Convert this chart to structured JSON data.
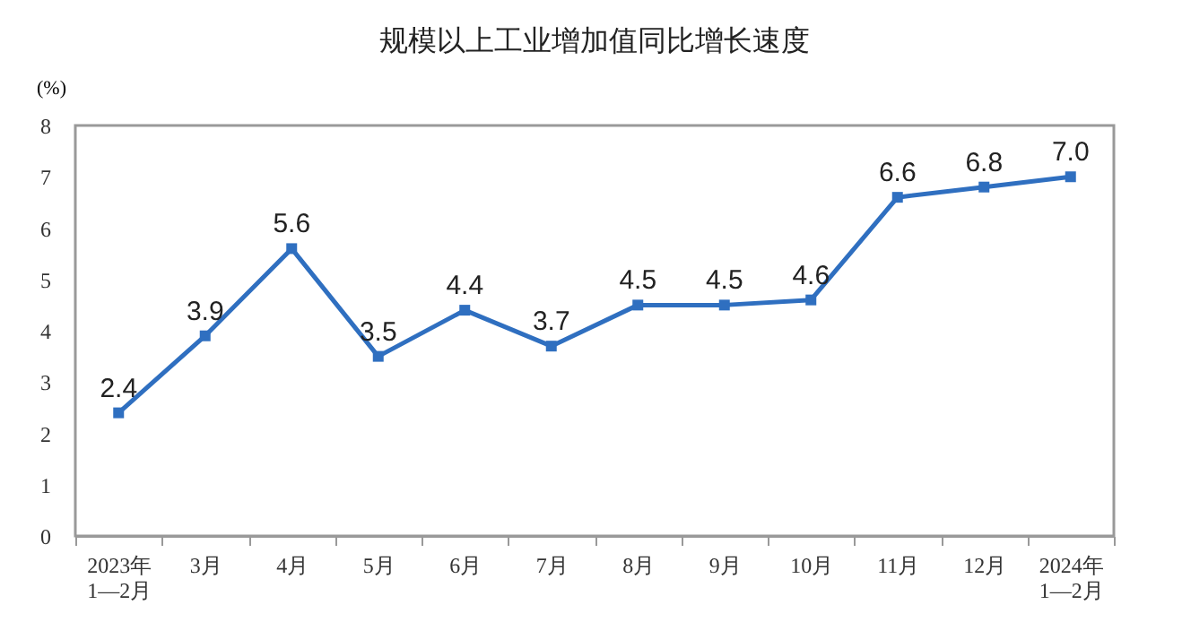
{
  "chart_data": {
    "type": "line",
    "title": "规模以上工业增加值同比增长速度",
    "ylabel": "(%)",
    "categories": [
      "2023年\n1—2月",
      "3月",
      "4月",
      "5月",
      "6月",
      "7月",
      "8月",
      "9月",
      "10月",
      "11月",
      "12月",
      "2024年\n1—2月"
    ],
    "series": [
      {
        "color": "#2f6fc0",
        "values": [
          2.4,
          3.9,
          5.6,
          3.5,
          4.4,
          3.7,
          4.5,
          4.5,
          4.6,
          6.6,
          6.8,
          7.0
        ],
        "value_labels": [
          "2.4",
          "3.9",
          "5.6",
          "3.5",
          "4.4",
          "3.7",
          "4.5",
          "4.5",
          "4.6",
          "6.6",
          "6.8",
          "7.0"
        ]
      }
    ],
    "ylim": [
      0,
      8
    ],
    "yticks": [
      0,
      1,
      2,
      3,
      4,
      5,
      6,
      7,
      8
    ],
    "grid": false,
    "marker": "square",
    "line_style": "solid"
  }
}
